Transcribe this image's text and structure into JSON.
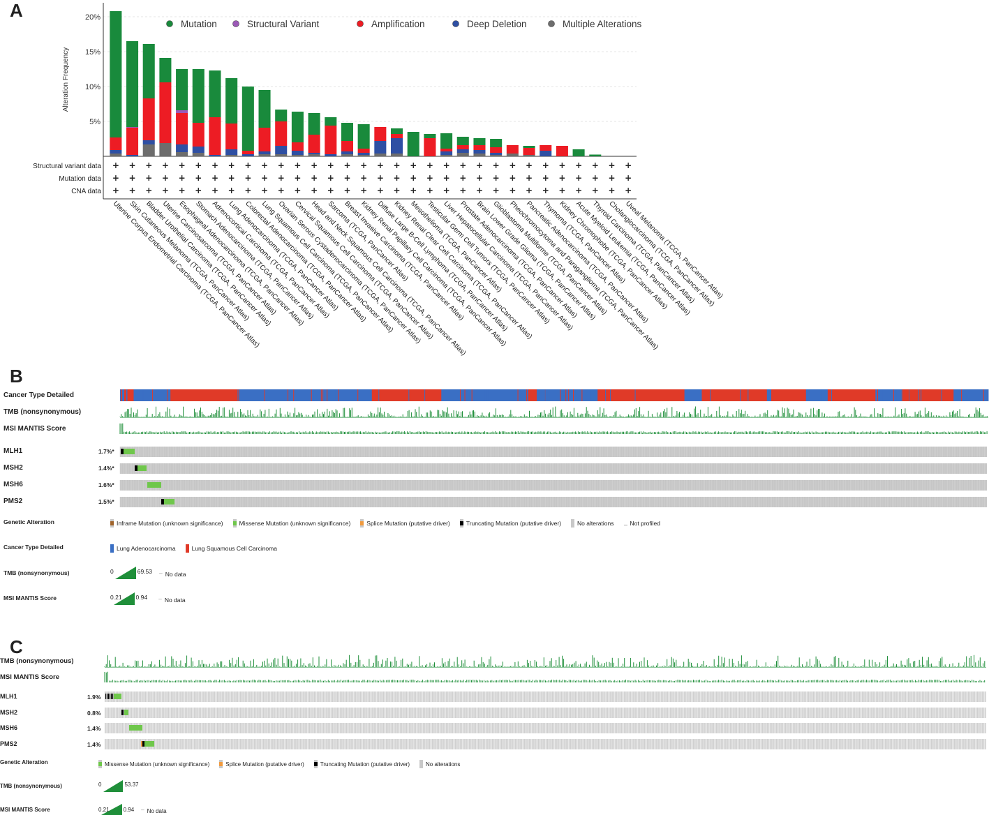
{
  "panels": {
    "a": "A",
    "b": "B",
    "c": "C"
  },
  "chart_data": {
    "type": "bar",
    "ylabel": "Alteration Frequency",
    "ylim": [
      0,
      22
    ],
    "yticks": [
      "5%",
      "10%",
      "15%",
      "20%"
    ],
    "legend": [
      {
        "name": "Mutation",
        "color": "#198a3c"
      },
      {
        "name": "Structural Variant",
        "color": "#9b59b6"
      },
      {
        "name": "Amplification",
        "color": "#ed1c24"
      },
      {
        "name": "Deep Deletion",
        "color": "#2e4fa3"
      },
      {
        "name": "Multiple Alterations",
        "color": "#6d6d6d"
      }
    ],
    "row_labels": [
      "Structural variant data",
      "Mutation data",
      "CNA data"
    ],
    "row_marker": "+",
    "categories": [
      "Uterine Corpus Endometrial Carcinoma (TCGA, PanCancer Atlas)",
      "Skin Cutaneous Melanoma (TCGA, PanCancer Atlas)",
      "Bladder Urothelial Carcinoma (TCGA, PanCancer Atlas)",
      "Uterine Carcinosarcoma (TCGA, PanCancer Atlas)",
      "Esophageal Adenocarcinoma (TCGA, PanCancer Atlas)",
      "Stomach Adenocarcinoma (TCGA, PanCancer Atlas)",
      "Adrenocortical Carcinoma (TCGA, PanCancer Atlas)",
      "Lung Adenocarcinoma (TCGA, PanCancer Atlas)",
      "Colorectal Adenocarcinoma (TCGA, PanCancer Atlas)",
      "Lung Squamous Cell Carcinoma (TCGA, PanCancer Atlas)",
      "Ovarian Serous Cystadenocarcinoma (TCGA, PanCancer Atlas)",
      "Cervical Squamous Cell Carcinoma (TCGA, PanCancer Atlas)",
      "Head and Neck Squamous Cell Carcinoma (TCGA, PanCancer Atlas)",
      "Sarcoma (TCGA, PanCancer Atlas)",
      "Breast Invasive Carcinoma (TCGA, PanCancer Atlas)",
      "Kidney Renal Papillary Cell Carcinoma (TCGA, PanCancer Atlas)",
      "Diffuse Large B-Cell Lymphoma (TCGA, PanCancer Atlas)",
      "Kidney Renal Clear Cell Carcinoma (TCGA, PanCancer Atlas)",
      "Mesothelioma (TCGA, PanCancer Atlas)",
      "Testicular Germ Cell Tumors (TCGA, PanCancer Atlas)",
      "Liver Hepatocellular Carcinoma (TCGA, PanCancer Atlas)",
      "Prostate Adenocarcinoma (TCGA, PanCancer Atlas)",
      "Brain Lower Grade Glioma (TCGA, PanCancer Atlas)",
      "Glioblastoma Multiforme (TCGA, PanCancer Atlas)",
      "Pheochromocytoma and Paraganglioma (TCGA, PanCancer Atlas)",
      "Pancreatic Adenocarcinoma (TCGA, PanCancer Atlas)",
      "Thymoma (TCGA, PanCancer Atlas)",
      "Kidney Chromophobe (TCGA, PanCancer Atlas)",
      "Acute Myeloid Leukemia (TCGA, PanCancer Atlas)",
      "Thyroid Carcinoma (TCGA, PanCancer Atlas)",
      "Cholangiocarcinoma (TCGA, PanCancer Atlas)",
      "Uveal Melanoma (TCGA, PanCancer Atlas)"
    ],
    "stack_order": [
      "Multiple Alterations",
      "Deep Deletion",
      "Amplification",
      "Structural Variant",
      "Mutation"
    ],
    "series": [
      {
        "name": "Mutation",
        "values": [
          18.1,
          12.3,
          7.8,
          3.5,
          5.9,
          7.7,
          6.7,
          6.5,
          9.2,
          5.4,
          1.7,
          4.4,
          3.1,
          1.2,
          2.6,
          3.5,
          0.0,
          0.8,
          3.5,
          0.6,
          2.2,
          1.2,
          1.0,
          1.2,
          0.0,
          0.3,
          0.0,
          0.0,
          1.0,
          0.25,
          0.0,
          0.0
        ]
      },
      {
        "name": "Structural Variant",
        "values": [
          0.0,
          0.1,
          0.0,
          0.0,
          0.4,
          0.0,
          0.0,
          0.0,
          0.0,
          0.0,
          0.0,
          0.0,
          0.0,
          0.0,
          0.0,
          0.0,
          0.0,
          0.0,
          0.0,
          0.0,
          0.0,
          0.0,
          0.0,
          0.0,
          0.0,
          0.0,
          0.0,
          0.0,
          0.0,
          0.0,
          0.0,
          0.0
        ]
      },
      {
        "name": "Amplification",
        "values": [
          1.8,
          3.9,
          6.0,
          8.7,
          4.5,
          3.4,
          5.4,
          3.7,
          0.5,
          3.4,
          3.5,
          1.2,
          2.6,
          4.1,
          1.5,
          0.6,
          2.0,
          0.6,
          0.0,
          2.6,
          0.4,
          0.6,
          0.7,
          0.8,
          1.2,
          1.0,
          0.8,
          1.5,
          0.0,
          0.0,
          0.0,
          0.0
        ]
      },
      {
        "name": "Deep Deletion",
        "values": [
          0.5,
          0.2,
          0.6,
          0.0,
          1.1,
          0.9,
          0.2,
          0.8,
          0.3,
          0.4,
          1.2,
          0.6,
          0.2,
          0.3,
          0.4,
          0.3,
          1.8,
          2.2,
          0.0,
          0.0,
          0.5,
          0.5,
          0.5,
          0.3,
          0.0,
          0.0,
          0.8,
          0.0,
          0.0,
          0.0,
          0.0,
          0.0
        ]
      },
      {
        "name": "Multiple Alterations",
        "values": [
          0.4,
          0.0,
          1.7,
          1.9,
          0.6,
          0.5,
          0.0,
          0.2,
          0.0,
          0.3,
          0.3,
          0.2,
          0.3,
          0.0,
          0.3,
          0.2,
          0.4,
          0.4,
          0.0,
          0.0,
          0.2,
          0.5,
          0.4,
          0.2,
          0.4,
          0.2,
          0.0,
          0.0,
          0.0,
          0.0,
          0.0,
          0.0
        ]
      }
    ]
  },
  "panel_b": {
    "track_labels": [
      "Cancer Type Detailed",
      "TMB (nonsynonymous)",
      "MSI MANTIS Score"
    ],
    "genes": [
      {
        "name": "MLH1",
        "pct": "1.7%*"
      },
      {
        "name": "MSH2",
        "pct": "1.4%*"
      },
      {
        "name": "MSH6",
        "pct": "1.6%*"
      },
      {
        "name": "PMS2",
        "pct": "1.5%*"
      }
    ],
    "genetic_alteration_label": "Genetic Alteration",
    "genetic_alteration_legend": [
      {
        "label": "Inframe Mutation (unknown significance)",
        "color": "#a0632a"
      },
      {
        "label": "Missense Mutation (unknown significance)",
        "color": "#6fc74b"
      },
      {
        "label": "Splice Mutation (putative driver)",
        "color": "#f09a3e"
      },
      {
        "label": "Truncating Mutation (putative driver)",
        "color": "#000000"
      },
      {
        "label": "No alterations",
        "color": "#c8c8c8"
      },
      {
        "label": "Not profiled",
        "color": "#ffffff"
      }
    ],
    "cancer_type_label": "Cancer Type Detailed",
    "cancer_type_legend": [
      {
        "label": "Lung Adenocarcinoma",
        "color": "#3a6fc4"
      },
      {
        "label": "Lung Squamous Cell Carcinoma",
        "color": "#e03a28"
      }
    ],
    "tmb_label": "TMB (nonsynonymous)",
    "tmb_min": "0",
    "tmb_max": "69.53",
    "msi_label": "MSI MANTIS Score",
    "msi_min": "0.21",
    "msi_max": "0.94",
    "no_data": "No data"
  },
  "panel_c": {
    "track_labels": [
      "TMB (nonsynonymous)",
      "MSI MANTIS Score"
    ],
    "genes": [
      {
        "name": "MLH1",
        "pct": "1.9%"
      },
      {
        "name": "MSH2",
        "pct": "0.8%"
      },
      {
        "name": "MSH6",
        "pct": "1.4%"
      },
      {
        "name": "PMS2",
        "pct": "1.4%"
      }
    ],
    "genetic_alteration_label": "Genetic Alteration",
    "genetic_alteration_legend": [
      {
        "label": "Missense Mutation (unknown significance)",
        "color": "#6fc74b"
      },
      {
        "label": "Splice Mutation (putative driver)",
        "color": "#f09a3e"
      },
      {
        "label": "Truncating Mutation (putative driver)",
        "color": "#000000"
      },
      {
        "label": "No alterations",
        "color": "#c8c8c8"
      }
    ],
    "tmb_label": "TMB (nonsynonymous)",
    "tmb_min": "0",
    "tmb_max": "53.37",
    "msi_label": "MSI MANTIS Score",
    "msi_min": "0.21",
    "msi_max": "0.94",
    "no_data": "No data"
  }
}
